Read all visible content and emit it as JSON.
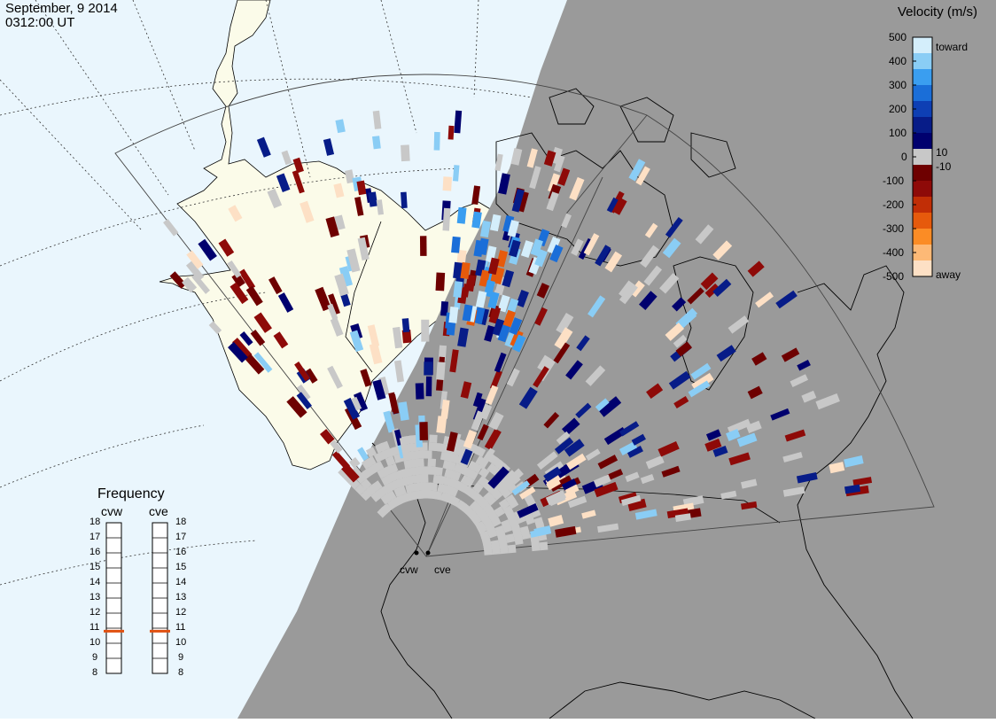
{
  "header": {
    "date": "September, 9 2014",
    "time": "0312:00 UT"
  },
  "velocity_scale": {
    "title": "Velocity (m/s)",
    "ticks": [
      {
        "label": "500",
        "value": 500
      },
      {
        "label": "400",
        "value": 400
      },
      {
        "label": "300",
        "value": 300
      },
      {
        "label": "200",
        "value": 200
      },
      {
        "label": "100",
        "value": 100
      },
      {
        "label": "0",
        "value": 0
      },
      {
        "label": "-100",
        "value": -100
      },
      {
        "label": "-200",
        "value": -200
      },
      {
        "label": "-300",
        "value": -300
      },
      {
        "label": "-400",
        "value": -400
      },
      {
        "label": "-500",
        "value": -500
      }
    ],
    "threshold_positive": "10",
    "threshold_negative": "-10",
    "toward_label": "toward",
    "away_label": "away",
    "colors": [
      "#fde0c5",
      "#fdb976",
      "#fb8c25",
      "#e65a0c",
      "#c12e06",
      "#8e0a08",
      "#6e0000",
      "#c8c8c8",
      "#00006e",
      "#071c88",
      "#0e3fb4",
      "#1a6ed8",
      "#3a9ef0",
      "#8acdf5",
      "#d4eefb"
    ]
  },
  "frequency_panel": {
    "title": "Frequency",
    "left_label": "cvw",
    "right_label": "cve",
    "ticks": [
      "18",
      "17",
      "16",
      "15",
      "14",
      "13",
      "12",
      "11",
      "10",
      "9",
      "8"
    ],
    "cvw_frequency": 10.8,
    "cve_frequency": 10.8,
    "marker_color": "#e05010"
  },
  "radars": {
    "west_label": "cvw",
    "east_label": "cve"
  },
  "map_colors": {
    "ocean": "#eaf6fd",
    "land": "#fbfbe9",
    "night": "#9a9a9a",
    "ground_scatter": "#c8c8c8"
  }
}
